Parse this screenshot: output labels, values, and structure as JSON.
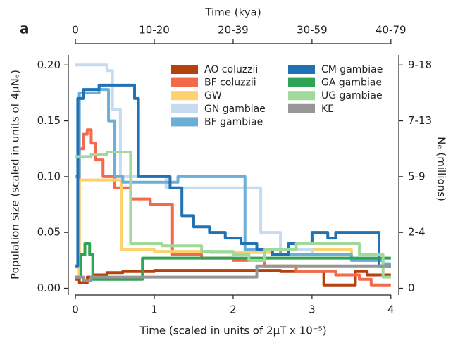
{
  "chart_data": {
    "type": "step",
    "panel_label": "a",
    "xlabel": "Time (scaled in units of 2μT x 10⁻⁵)",
    "ylabel": "Population size (scaled in units of 4μNₑ)",
    "x2label": "Time (kya)",
    "y2label": "Nₑ (millions)",
    "xlim": [
      -0.09,
      4.1
    ],
    "ylim": [
      -0.006,
      0.209
    ],
    "y2lim": [
      -0.006,
      0.209
    ],
    "xticks": [
      0,
      1,
      2,
      3,
      4
    ],
    "x2ticks": [
      0,
      {
        "value": 1,
        "label": "10-20"
      },
      {
        "value": 2,
        "label": "20-39"
      },
      {
        "value": 3,
        "label": "30-59"
      },
      {
        "value": 4,
        "label": "40-79"
      }
    ],
    "yticks": [
      {
        "value": 0,
        "label": "0.00"
      },
      {
        "value": 0.05,
        "label": "0.05"
      },
      {
        "value": 0.1,
        "label": "0.10"
      },
      {
        "value": 0.15,
        "label": "0.15"
      },
      {
        "value": 0.2,
        "label": "0.20"
      }
    ],
    "y2ticks": [
      0,
      {
        "value": 0.05,
        "label": "2-4"
      },
      {
        "value": 0.1,
        "label": "5-9"
      },
      {
        "value": 0.15,
        "label": "7-13"
      },
      {
        "value": 0.2,
        "label": "9-18"
      }
    ],
    "series": [
      {
        "name": "AO coluzzii",
        "color": "#b3420f",
        "x": [
          0,
          0.05,
          0.15,
          0.25,
          0.4,
          0.6,
          1.0,
          2.6,
          3.15,
          3.55,
          3.7,
          4.0
        ],
        "values": [
          0.008,
          0.005,
          0.01,
          0.012,
          0.014,
          0.015,
          0.016,
          0.015,
          0.003,
          0.015,
          0.012,
          0.012
        ]
      },
      {
        "name": "BF coluzzii",
        "color": "#f4694a",
        "x": [
          0,
          0.05,
          0.1,
          0.15,
          0.2,
          0.25,
          0.35,
          0.5,
          0.7,
          0.95,
          1.23,
          1.6,
          2.0,
          2.4,
          2.8,
          3.3,
          3.6,
          3.75,
          4.0
        ],
        "values": [
          0.01,
          0.125,
          0.138,
          0.142,
          0.13,
          0.115,
          0.1,
          0.09,
          0.08,
          0.075,
          0.03,
          0.027,
          0.025,
          0.02,
          0.015,
          0.012,
          0.008,
          0.003,
          0.003
        ]
      },
      {
        "name": "GW",
        "color": "#fdd26e",
        "x": [
          0,
          0.05,
          0.58,
          1.0,
          1.7,
          2.5,
          3.0,
          3.5,
          3.9,
          4.0
        ],
        "values": [
          0.01,
          0.097,
          0.035,
          0.033,
          0.032,
          0.03,
          0.035,
          0.025,
          0.02,
          0.02
        ]
      },
      {
        "name": "GN gambiae",
        "color": "#c6dbef",
        "x": [
          0,
          0.4,
          0.47,
          0.57,
          1.15,
          2.35,
          2.6,
          3.0,
          3.5,
          3.9,
          4.0
        ],
        "values": [
          0.2,
          0.195,
          0.16,
          0.1,
          0.09,
          0.05,
          0.035,
          0.03,
          0.025,
          0.02,
          0.02
        ]
      },
      {
        "name": "BF gambiae",
        "color": "#6baed6",
        "x": [
          0,
          0.05,
          0.3,
          0.42,
          0.5,
          0.6,
          1.3,
          2.15,
          2.6,
          3.0,
          3.5,
          3.9,
          4.0
        ],
        "values": [
          0.1,
          0.175,
          0.178,
          0.15,
          0.1,
          0.095,
          0.1,
          0.035,
          0.03,
          0.03,
          0.025,
          0.022,
          0.022
        ]
      },
      {
        "name": "CM gambiae",
        "color": "#2171b5",
        "x": [
          0,
          0.03,
          0.1,
          0.3,
          0.75,
          0.8,
          1.2,
          1.35,
          1.5,
          1.7,
          1.9,
          2.1,
          2.3,
          2.5,
          2.7,
          3.0,
          3.2,
          3.3,
          3.85,
          4.0
        ],
        "values": [
          0.02,
          0.17,
          0.178,
          0.182,
          0.17,
          0.1,
          0.09,
          0.065,
          0.055,
          0.05,
          0.045,
          0.04,
          0.035,
          0.03,
          0.04,
          0.05,
          0.045,
          0.05,
          0.02,
          0.02
        ]
      },
      {
        "name": "GA gambiae",
        "color": "#31a354",
        "x": [
          0,
          0.07,
          0.12,
          0.18,
          0.22,
          0.85,
          4.0
        ],
        "values": [
          0.01,
          0.03,
          0.04,
          0.03,
          0.008,
          0.027,
          0.027
        ]
      },
      {
        "name": "UG gambiae",
        "color": "#a1d99b",
        "x": [
          0,
          0.2,
          0.4,
          0.7,
          1.1,
          1.6,
          2.0,
          2.2,
          2.4,
          2.8,
          3.6,
          3.9,
          4.0
        ],
        "values": [
          0.118,
          0.12,
          0.122,
          0.04,
          0.038,
          0.033,
          0.03,
          0.025,
          0.035,
          0.04,
          0.03,
          0.01,
          0.01
        ]
      },
      {
        "name": "KE",
        "color": "#969696",
        "x": [
          0,
          0.1,
          0.2,
          2.3,
          4.0
        ],
        "values": [
          0.01,
          0.007,
          0.01,
          0.02,
          0.02
        ]
      }
    ]
  }
}
